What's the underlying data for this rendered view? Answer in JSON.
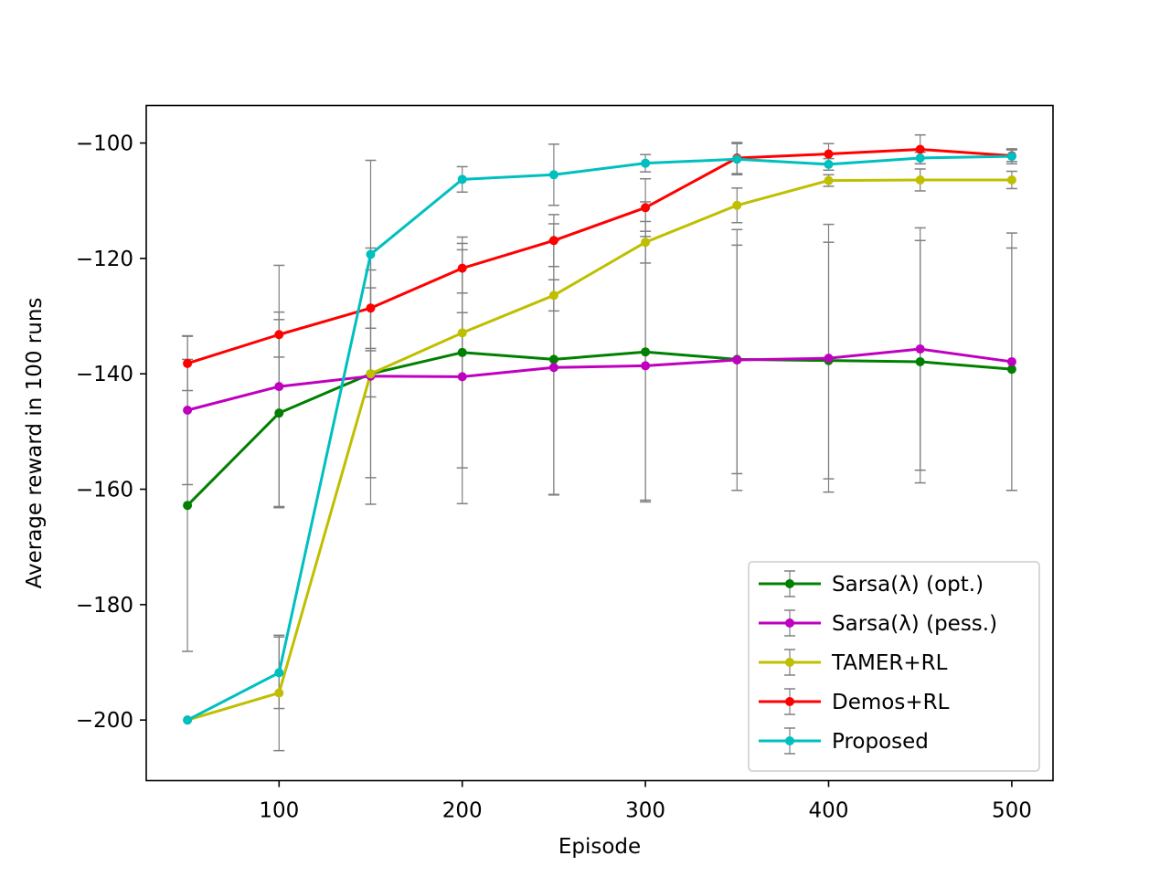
{
  "chart_data": {
    "type": "line",
    "title": "",
    "xlabel": "Episode",
    "ylabel": "Average reward in 100 runs",
    "xlim": [
      27.5,
      522.5
    ],
    "ylim": [
      -210.5,
      -93.5
    ],
    "xticks": [
      100,
      200,
      300,
      400,
      500
    ],
    "yticks": [
      -200,
      -180,
      -160,
      -140,
      -120,
      -100
    ],
    "ytick_labels": [
      "−200",
      "−180",
      "−160",
      "−140",
      "−120",
      "−100"
    ],
    "grid": false,
    "legend_position": "lower-right",
    "error_bar_color": "#808080",
    "x": [
      50,
      100,
      150,
      200,
      250,
      300,
      350,
      400,
      450,
      500
    ],
    "series": [
      {
        "name": "Sarsa(λ) (opt.)",
        "color": "#008000",
        "values": [
          -162.8,
          -146.8,
          -140.0,
          -136.3,
          -137.5,
          -136.2,
          -137.5,
          -137.7,
          -137.9,
          -139.2
        ],
        "yerr": [
          25.3,
          16.2,
          18.0,
          20.0,
          23.5,
          26.0,
          19.8,
          20.5,
          21.0,
          21.0
        ]
      },
      {
        "name": "Sarsa(λ) (pess.)",
        "color": "#bf00bf",
        "values": [
          -146.3,
          -142.2,
          -140.4,
          -140.5,
          -138.9,
          -138.6,
          -137.6,
          -137.3,
          -135.7,
          -137.9
        ],
        "yerr": [
          12.9,
          21.0,
          22.2,
          22.0,
          22.0,
          23.3,
          22.6,
          23.2,
          21.0,
          22.3
        ]
      },
      {
        "name": "TAMER+RL",
        "color": "#bfbf00",
        "values": [
          -200.0,
          -195.3,
          -140.0,
          -132.9,
          -126.4,
          -117.2,
          -110.8,
          -106.5,
          -106.4,
          -106.4
        ],
        "yerr": [
          0,
          10.0,
          4.0,
          3.5,
          2.7,
          3.6,
          3.0,
          1.0,
          1.9,
          1.5
        ]
      },
      {
        "name": "Demos+RL",
        "color": "#ff0000",
        "values": [
          -138.2,
          -133.2,
          -128.6,
          -121.7,
          -116.9,
          -111.2,
          -102.6,
          -101.9,
          -101.1,
          -102.2
        ],
        "yerr": [
          4.7,
          3.9,
          3.5,
          4.3,
          4.5,
          5.0,
          2.7,
          1.8,
          2.5,
          1.0
        ]
      },
      {
        "name": "Proposed",
        "color": "#00bfbf",
        "values": [
          -200.0,
          -191.8,
          -119.3,
          -106.3,
          -105.5,
          -103.5,
          -102.8,
          -103.7,
          -102.6,
          -102.3
        ],
        "yerr": [
          0,
          6.2,
          16.3,
          2.2,
          5.3,
          1.5,
          2.7,
          1.0,
          1.0,
          1.3
        ]
      }
    ]
  }
}
